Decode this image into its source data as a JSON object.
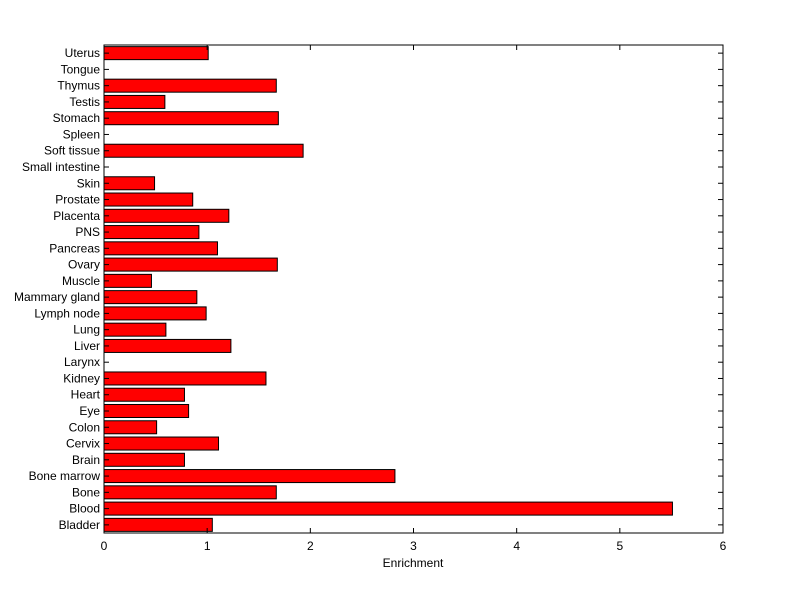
{
  "chart_data": {
    "type": "bar",
    "orientation": "horizontal",
    "title": "",
    "xlabel": "Enrichment",
    "ylabel": "",
    "xlim": [
      0,
      6
    ],
    "xticks": [
      "0",
      "1",
      "2",
      "3",
      "4",
      "5",
      "6"
    ],
    "grid": false,
    "bar_color": "#ff0000",
    "categories": [
      "Uterus",
      "Tongue",
      "Thymus",
      "Testis",
      "Stomach",
      "Spleen",
      "Soft tissue",
      "Small intestine",
      "Skin",
      "Prostate",
      "Placenta",
      "PNS",
      "Pancreas",
      "Ovary",
      "Muscle",
      "Mammary gland",
      "Lymph node",
      "Lung",
      "Liver",
      "Larynx",
      "Kidney",
      "Heart",
      "Eye",
      "Colon",
      "Cervix",
      "Brain",
      "Bone marrow",
      "Bone",
      "Blood",
      "Bladder"
    ],
    "values": [
      1.01,
      0,
      1.67,
      0.59,
      1.69,
      0,
      1.93,
      0,
      0.49,
      0.86,
      1.21,
      0.92,
      1.1,
      1.68,
      0.46,
      0.9,
      0.99,
      0.6,
      1.23,
      0,
      1.57,
      0.78,
      0.82,
      0.51,
      1.11,
      0.78,
      2.82,
      1.67,
      5.51,
      1.05
    ]
  }
}
